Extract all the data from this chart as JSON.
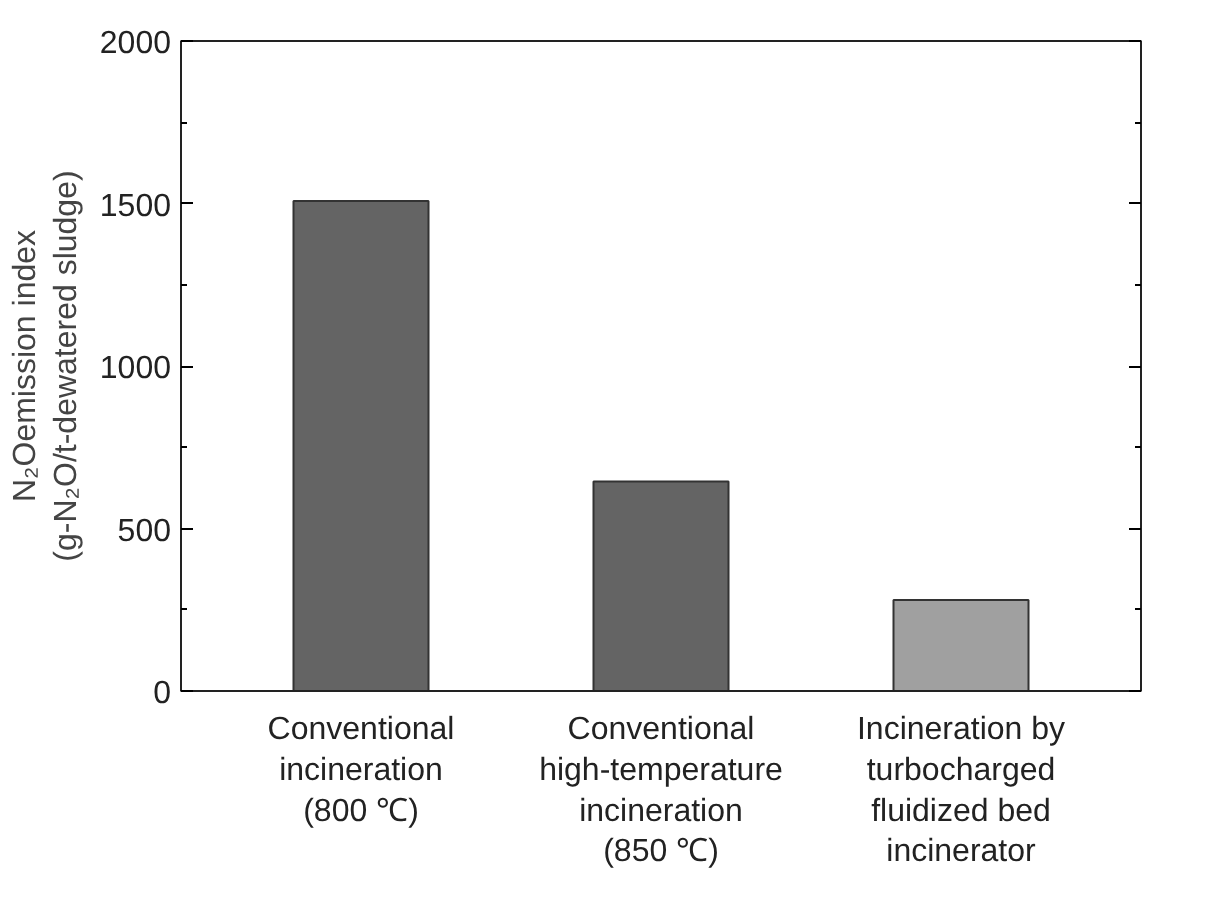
{
  "chart_data": {
    "type": "bar",
    "ylabel": "N₂Oemission index\n(g-N₂O/t-dewatered sludge)",
    "categories": [
      "Conventional\nincineration\n(800 ℃)",
      "Conventional\nhigh-temperature\nincineration\n(850 ℃)",
      "Incineration by\nturbocharged\nfluidized bed\nincinerator"
    ],
    "values": [
      1508,
      645,
      280
    ],
    "colors": [
      "#646464",
      "#646464",
      "#a0a0a0"
    ],
    "ylim": [
      0,
      2000
    ],
    "yticks": [
      0,
      500,
      1000,
      1500,
      2000
    ],
    "grid": false
  }
}
